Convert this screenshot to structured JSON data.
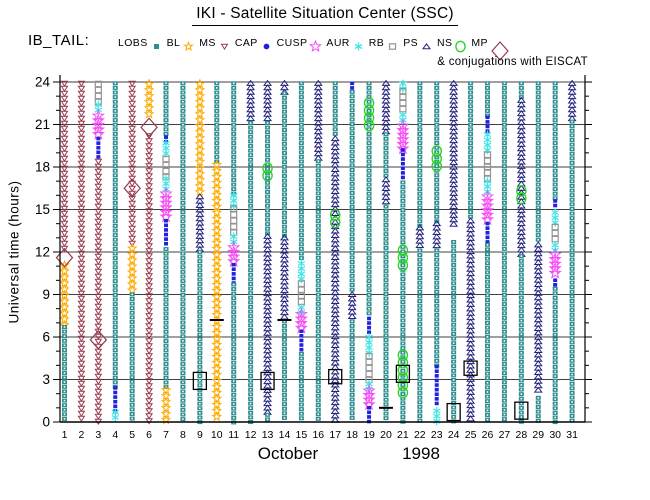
{
  "title": "IKI - Satellite Situation Center (SSC)",
  "legend": {
    "prefix": "IB_TAIL:",
    "note": "& conjugations with EISCAT",
    "items": [
      {
        "code": "LOBS",
        "label": "LOBS",
        "symbol": "teal-filled-square",
        "color": "#2f8f8f"
      },
      {
        "code": "BL",
        "label": "BL",
        "symbol": "orange-star",
        "color": "#ffaa00"
      },
      {
        "code": "MS",
        "label": "MS",
        "symbol": "maroon-triangle-down",
        "color": "#993a4e"
      },
      {
        "code": "CAP",
        "label": "CAP",
        "symbol": "blue-filled-dot",
        "color": "#2222dd"
      },
      {
        "code": "CUSP",
        "label": "CUSP",
        "symbol": "magenta-open-star",
        "color": "#f54df5"
      },
      {
        "code": "AUR",
        "label": "AUR",
        "symbol": "cyan-asterisk",
        "color": "#45e5e8"
      },
      {
        "code": "RB",
        "label": "RB",
        "symbol": "gray-open-square",
        "color": "#949494"
      },
      {
        "code": "PS",
        "label": "PS",
        "symbol": "navy-open-triangle-up",
        "color": "#23237d"
      },
      {
        "code": "NS",
        "label": "NS",
        "symbol": "green-open-circle",
        "color": "#2bd42b"
      },
      {
        "code": "MP",
        "label": "MP",
        "symbol": "maroon-open-diamond",
        "color": "#993a4e"
      }
    ]
  },
  "chart_data": {
    "type": "scatter",
    "subtype": "satellite-region-occupancy-columns",
    "title": "IKI - Satellite Situation Center (SSC)",
    "spacecraft": "IB_TAIL",
    "xlabel_month": "October",
    "xlabel_year": "1998",
    "ylabel": "Universal time (hours)",
    "ylim": [
      0,
      24
    ],
    "yticks": [
      0,
      3,
      6,
      9,
      12,
      15,
      18,
      21,
      24
    ],
    "xdays": [
      1,
      2,
      3,
      4,
      5,
      6,
      7,
      8,
      9,
      10,
      11,
      12,
      13,
      14,
      15,
      16,
      17,
      18,
      19,
      20,
      21,
      22,
      23,
      24,
      25,
      26,
      27,
      28,
      29,
      30,
      31
    ],
    "grid": true,
    "colors": {
      "LOBS": "#2f8f8f",
      "BL": "#ffaa00",
      "MS": "#993a4e",
      "CAP": "#2222dd",
      "CUSP": "#f54df5",
      "AUR": "#45e5e8",
      "RB": "#949494",
      "PS": "#23237d",
      "NS": "#2bd42b",
      "MP": "#993a4e",
      "EISCAT": "#000000",
      "TICK": "#000000"
    },
    "days": [
      {
        "day": 1,
        "segments": [
          [
            "MS",
            24,
            12.0
          ],
          [
            "BL",
            11.2,
            6.8
          ],
          [
            "LOBS",
            6.8,
            0
          ]
        ],
        "markers": [
          [
            "MP",
            11.6
          ]
        ]
      },
      {
        "day": 2,
        "segments": [
          [
            "MS",
            24,
            0
          ]
        ],
        "markers": []
      },
      {
        "day": 3,
        "segments": [
          [
            "RB",
            24,
            22.5
          ],
          [
            "AUR",
            22.5,
            21.7
          ],
          [
            "CUSP",
            21.7,
            20.1
          ],
          [
            "CAP",
            20.1,
            18.5
          ],
          [
            "MS",
            18.5,
            0
          ]
        ],
        "markers": [
          [
            "MP",
            5.8
          ]
        ]
      },
      {
        "day": 4,
        "segments": [
          [
            "LOBS",
            24,
            2.5
          ],
          [
            "CAP",
            2.5,
            0.8
          ],
          [
            "AUR",
            0.8,
            0
          ]
        ],
        "markers": []
      },
      {
        "day": 5,
        "segments": [
          [
            "MS",
            24,
            12.4
          ],
          [
            "BL",
            12.4,
            9.1
          ],
          [
            "LOBS",
            9.1,
            0
          ]
        ],
        "markers": [
          [
            "MP",
            16.5
          ]
        ]
      },
      {
        "day": 6,
        "segments": [
          [
            "BL",
            24,
            21.5
          ],
          [
            "MS",
            20.3,
            0
          ]
        ],
        "markers": [
          [
            "MP",
            20.8
          ]
        ]
      },
      {
        "day": 7,
        "segments": [
          [
            "LOBS",
            24,
            20.2
          ],
          [
            "CAP",
            20.2,
            19.8
          ],
          [
            "AUR",
            19.8,
            18.7
          ],
          [
            "RB",
            18.7,
            17.3
          ],
          [
            "AUR",
            17.3,
            16.2
          ],
          [
            "CUSP",
            16.2,
            14.3
          ],
          [
            "CAP",
            14.3,
            12.3
          ],
          [
            "LOBS",
            12.3,
            2.4
          ],
          [
            "BL",
            2.4,
            0
          ]
        ],
        "markers": []
      },
      {
        "day": 8,
        "segments": [
          [
            "LOBS",
            24,
            0
          ]
        ],
        "markers": []
      },
      {
        "day": 9,
        "segments": [
          [
            "BL",
            24,
            16.0
          ],
          [
            "PS",
            16.0,
            12.1
          ],
          [
            "LOBS",
            12.1,
            0
          ]
        ],
        "markers": [
          [
            "EISCAT",
            3.5,
            2.3
          ]
        ]
      },
      {
        "day": 10,
        "segments": [
          [
            "LOBS",
            24,
            18.3
          ],
          [
            "BL",
            18.3,
            0
          ]
        ],
        "markers": [
          [
            "TICK",
            7.2
          ]
        ]
      },
      {
        "day": 11,
        "segments": [
          [
            "LOBS",
            24,
            16.1
          ],
          [
            "AUR",
            16.1,
            15.2
          ],
          [
            "RB",
            15.2,
            13.2
          ],
          [
            "AUR",
            13.2,
            12.4
          ],
          [
            "CUSP",
            12.4,
            11.2
          ],
          [
            "CAP",
            11.2,
            9.8
          ],
          [
            "LOBS",
            9.8,
            0
          ]
        ],
        "markers": []
      },
      {
        "day": 12,
        "segments": [
          [
            "PS",
            24,
            21.2
          ],
          [
            "LOBS",
            21.2,
            0
          ]
        ],
        "markers": []
      },
      {
        "day": 13,
        "segments": [
          [
            "PS",
            24,
            21.2
          ],
          [
            "LOBS",
            21.2,
            13.2
          ],
          [
            "PS",
            13.2,
            0.6
          ],
          [
            "LOBS",
            0.6,
            0
          ]
        ],
        "markers": [
          [
            "NS",
            18.2,
            16.9
          ],
          [
            "EISCAT",
            3.5,
            2.3
          ]
        ]
      },
      {
        "day": 14,
        "segments": [
          [
            "PS",
            24,
            23.3
          ],
          [
            "LOBS",
            23.3,
            13.1
          ],
          [
            "PS",
            13.1,
            7.4
          ],
          [
            "LOBS",
            7.2,
            0
          ]
        ],
        "markers": [
          [
            "TICK",
            7.2
          ]
        ]
      },
      {
        "day": 15,
        "segments": [
          [
            "LOBS",
            24,
            11.3
          ],
          [
            "AUR",
            11.3,
            9.9
          ],
          [
            "RB",
            9.9,
            8.2
          ],
          [
            "AUR",
            8.2,
            7.7
          ],
          [
            "CUSP",
            7.7,
            6.5
          ],
          [
            "CAP",
            6.5,
            4.9
          ],
          [
            "LOBS",
            4.9,
            0
          ]
        ],
        "markers": []
      },
      {
        "day": 16,
        "segments": [
          [
            "PS",
            24,
            18.5
          ],
          [
            "LOBS",
            18.5,
            0
          ]
        ],
        "markers": []
      },
      {
        "day": 17,
        "segments": [
          [
            "LOBS",
            24,
            20.1
          ],
          [
            "PS",
            20.1,
            0
          ]
        ],
        "markers": [
          [
            "NS",
            14.9,
            13.8
          ],
          [
            "EISCAT",
            3.7,
            2.7
          ]
        ]
      },
      {
        "day": 18,
        "segments": [
          [
            "CAP",
            24,
            23.4
          ],
          [
            "LOBS",
            23.4,
            9.1
          ],
          [
            "PS",
            9.1,
            7.2
          ],
          [
            "LOBS",
            7.2,
            0
          ]
        ],
        "markers": []
      },
      {
        "day": 19,
        "segments": [
          [
            "LOBS",
            24,
            7.4
          ],
          [
            "CAP",
            7.4,
            6.3
          ],
          [
            "AUR",
            6.1,
            4.9
          ],
          [
            "RB",
            4.8,
            2.9
          ],
          [
            "AUR",
            2.8,
            2.3
          ],
          [
            "CUSP",
            2.3,
            1.2
          ],
          [
            "CAP",
            1.1,
            0
          ]
        ],
        "markers": [
          [
            "NS",
            22.8,
            20.3
          ]
        ]
      },
      {
        "day": 20,
        "segments": [
          [
            "PS",
            24,
            20.4
          ],
          [
            "LOBS",
            20.4,
            17.2
          ],
          [
            "PS",
            17.2,
            15.3
          ],
          [
            "LOBS",
            15.3,
            0
          ]
        ],
        "markers": [
          [
            "TICK",
            1.0
          ]
        ]
      },
      {
        "day": 21,
        "segments": [
          [
            "AUR",
            24,
            23.5
          ],
          [
            "RB",
            23.5,
            21.8
          ],
          [
            "AUR",
            21.8,
            21.0
          ],
          [
            "CUSP",
            21.0,
            19.3
          ],
          [
            "CAP",
            19.3,
            17.0
          ],
          [
            "LOBS",
            17.0,
            0
          ]
        ],
        "markers": [
          [
            "NS",
            12.4,
            10.7
          ],
          [
            "NS",
            5.0,
            1.7
          ],
          [
            "EISCAT",
            4.0,
            2.8
          ]
        ]
      },
      {
        "day": 22,
        "segments": [
          [
            "LOBS",
            24,
            13.8
          ],
          [
            "PS",
            13.8,
            12.2
          ],
          [
            "LOBS",
            12.2,
            0
          ]
        ],
        "markers": []
      },
      {
        "day": 23,
        "segments": [
          [
            "LOBS",
            24,
            14.1
          ],
          [
            "PS",
            14.1,
            12.2
          ],
          [
            "LOBS",
            12.2,
            4.0
          ],
          [
            "CAP",
            4.0,
            1.2
          ],
          [
            "AUR",
            0.9,
            0
          ]
        ],
        "markers": [
          [
            "NS",
            19.4,
            17.7
          ]
        ]
      },
      {
        "day": 24,
        "segments": [
          [
            "PS",
            24,
            14.0
          ],
          [
            "LOBS",
            12.8,
            0
          ]
        ],
        "markers": [
          [
            "EISCAT",
            1.3,
            0.1
          ]
        ]
      },
      {
        "day": 25,
        "segments": [
          [
            "LOBS",
            24,
            14.3
          ],
          [
            "PS",
            14.3,
            0
          ]
        ],
        "markers": [
          [
            "EISCAT",
            4.3,
            3.3
          ]
        ]
      },
      {
        "day": 26,
        "segments": [
          [
            "LOBS",
            24,
            21.6
          ],
          [
            "CAP",
            21.6,
            20.4
          ],
          [
            "AUR",
            20.4,
            19.0
          ],
          [
            "RB",
            19.0,
            17.1
          ],
          [
            "AUR",
            17.1,
            16.1
          ],
          [
            "CUSP",
            16.0,
            14.1
          ],
          [
            "CAP",
            14.1,
            12.6
          ],
          [
            "LOBS",
            12.6,
            0
          ]
        ],
        "markers": []
      },
      {
        "day": 27,
        "segments": [
          [
            "LOBS",
            24,
            0
          ]
        ],
        "markers": []
      },
      {
        "day": 28,
        "segments": [
          [
            "LOBS",
            24,
            22.8
          ],
          [
            "PS",
            22.8,
            11.8
          ],
          [
            "LOBS",
            11.8,
            0
          ]
        ],
        "markers": [
          [
            "NS",
            16.6,
            15.2
          ],
          [
            "EISCAT",
            1.4,
            0.2
          ]
        ]
      },
      {
        "day": 29,
        "segments": [
          [
            "LOBS",
            24,
            12.6
          ],
          [
            "PS",
            12.6,
            2.0
          ],
          [
            "LOBS",
            1.8,
            0
          ]
        ],
        "markers": []
      },
      {
        "day": 30,
        "segments": [
          [
            "LOBS",
            24,
            15.7
          ],
          [
            "CAP",
            15.7,
            15.1
          ],
          [
            "AUR",
            14.9,
            13.9
          ],
          [
            "RB",
            13.9,
            12.6
          ],
          [
            "AUR",
            12.6,
            12.0
          ],
          [
            "CUSP",
            11.9,
            10.3
          ],
          [
            "CAP",
            10.1,
            9.6
          ],
          [
            "LOBS",
            9.5,
            0
          ]
        ],
        "markers": []
      },
      {
        "day": 31,
        "segments": [
          [
            "PS",
            24,
            21.4
          ],
          [
            "LOBS",
            21.3,
            0
          ]
        ],
        "markers": []
      }
    ]
  }
}
